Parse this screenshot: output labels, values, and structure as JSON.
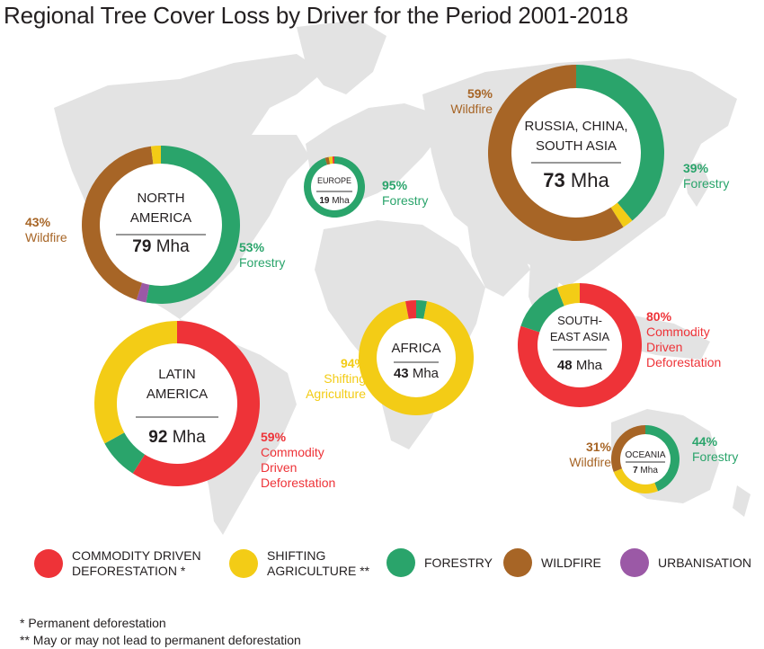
{
  "title": "Regional Tree Cover Loss by Driver for the Period 2001-2018",
  "colors": {
    "commodity": "#ee3338",
    "shifting": "#f3cc16",
    "forestry": "#2aa46b",
    "wildfire": "#a76526",
    "urbanisation": "#9b59a6",
    "map": "#e3e3e3"
  },
  "legend": [
    {
      "key": "commodity",
      "label": "COMMODITY DRIVEN\nDEFORESTATION *"
    },
    {
      "key": "shifting",
      "label": "SHIFTING\nAGRICULTURE **"
    },
    {
      "key": "forestry",
      "label": "FORESTRY"
    },
    {
      "key": "wildfire",
      "label": "WILDFIRE"
    },
    {
      "key": "urbanisation",
      "label": "URBANISATION"
    }
  ],
  "footnotes": [
    "* Permanent deforestation",
    "** May or may not lead to permanent deforestation"
  ],
  "chart_data": {
    "type": "pie",
    "subtype": "donut",
    "title": "Regional Tree Cover Loss by Driver for the Period 2001-2018",
    "categories": [
      "Commodity Driven Deforestation",
      "Shifting Agriculture",
      "Forestry",
      "Wildfire",
      "Urbanisation"
    ],
    "regions": [
      {
        "name": "NORTH AMERICA",
        "name_lines": [
          "NORTH",
          "AMERICA"
        ],
        "total": "79",
        "unit": "Mha",
        "slices": [
          {
            "driver": "forestry",
            "percent": 53
          },
          {
            "driver": "urbanisation",
            "percent": 2
          },
          {
            "driver": "wildfire",
            "percent": 43
          },
          {
            "driver": "shifting",
            "percent": 2
          }
        ],
        "annotations": [
          {
            "driver": "wildfire",
            "percent": "43%",
            "label": "Wildfire"
          },
          {
            "driver": "forestry",
            "percent": "53%",
            "label": "Forestry"
          }
        ]
      },
      {
        "name": "EUROPE",
        "name_lines": [
          "EUROPE"
        ],
        "total": "19",
        "unit": "Mha",
        "slices": [
          {
            "driver": "forestry",
            "percent": 95
          },
          {
            "driver": "wildfire",
            "percent": 2
          },
          {
            "driver": "shifting",
            "percent": 2
          },
          {
            "driver": "commodity",
            "percent": 1
          }
        ],
        "annotations": [
          {
            "driver": "forestry",
            "percent": "95%",
            "label": "Forestry"
          }
        ]
      },
      {
        "name": "RUSSIA, CHINA, SOUTH ASIA",
        "name_lines": [
          "RUSSIA, CHINA,",
          "SOUTH ASIA"
        ],
        "total": "73",
        "unit": "Mha",
        "slices": [
          {
            "driver": "forestry",
            "percent": 39
          },
          {
            "driver": "shifting",
            "percent": 2
          },
          {
            "driver": "wildfire",
            "percent": 59
          }
        ],
        "annotations": [
          {
            "driver": "wildfire",
            "percent": "59%",
            "label": "Wildfire"
          },
          {
            "driver": "forestry",
            "percent": "39%",
            "label": "Forestry"
          }
        ]
      },
      {
        "name": "AFRICA",
        "name_lines": [
          "AFRICA"
        ],
        "total": "43",
        "unit": "Mha",
        "slices": [
          {
            "driver": "forestry",
            "percent": 3
          },
          {
            "driver": "shifting",
            "percent": 94
          },
          {
            "driver": "commodity",
            "percent": 3
          }
        ],
        "annotations": [
          {
            "driver": "shifting",
            "percent": "94%",
            "label": "Shifting\nAgriculture"
          }
        ]
      },
      {
        "name": "SOUTH-EAST ASIA",
        "name_lines": [
          "SOUTH-",
          "EAST ASIA"
        ],
        "total": "48",
        "unit": "Mha",
        "slices": [
          {
            "driver": "commodity",
            "percent": 80
          },
          {
            "driver": "forestry",
            "percent": 14
          },
          {
            "driver": "shifting",
            "percent": 6
          }
        ],
        "annotations": [
          {
            "driver": "commodity",
            "percent": "80%",
            "label": "Commodity\nDriven\nDeforestation"
          }
        ]
      },
      {
        "name": "LATIN AMERICA",
        "name_lines": [
          "LATIN",
          "AMERICA"
        ],
        "total": "92",
        "unit": "Mha",
        "slices": [
          {
            "driver": "commodity",
            "percent": 59
          },
          {
            "driver": "forestry",
            "percent": 8
          },
          {
            "driver": "shifting",
            "percent": 33
          }
        ],
        "annotations": [
          {
            "driver": "commodity",
            "percent": "59%",
            "label": "Commodity\nDriven\nDeforestation"
          }
        ]
      },
      {
        "name": "OCEANIA",
        "name_lines": [
          "OCEANIA"
        ],
        "total": "7",
        "unit": "Mha",
        "slices": [
          {
            "driver": "forestry",
            "percent": 44
          },
          {
            "driver": "shifting",
            "percent": 25
          },
          {
            "driver": "wildfire",
            "percent": 31
          }
        ],
        "annotations": [
          {
            "driver": "wildfire",
            "percent": "31%",
            "label": "Wildfire"
          },
          {
            "driver": "forestry",
            "percent": "44%",
            "label": "Forestry"
          }
        ]
      }
    ]
  }
}
